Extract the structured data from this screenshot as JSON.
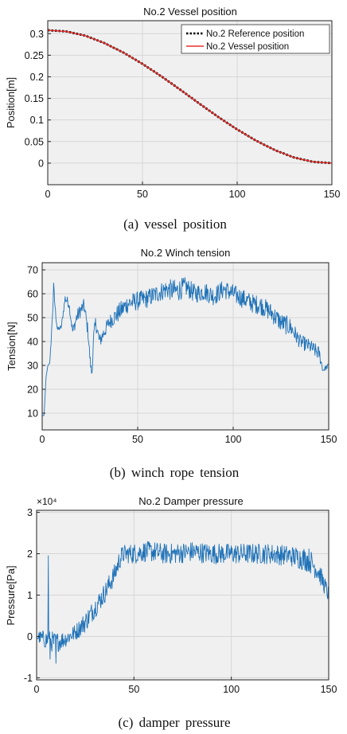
{
  "chart_data": [
    {
      "type": "line",
      "title": "No.2 Vessel position",
      "xlabel": "",
      "ylabel": "Position[m]",
      "xlim": [
        0,
        150
      ],
      "ylim": [
        -0.05,
        0.33
      ],
      "xticks": [
        0,
        50,
        100,
        150
      ],
      "yticks": [
        0,
        0.05,
        0.1,
        0.15,
        0.2,
        0.25,
        0.3
      ],
      "ytick_labels": [
        "0",
        "0.05",
        "0.1",
        "0.15",
        "0.2",
        "0.25",
        "0.3"
      ],
      "grid": true,
      "legend_position": "top-right",
      "caption": "(a)  vessel  position",
      "series": [
        {
          "name": "No.2 Reference position",
          "style": "dotted",
          "color": "#000000",
          "x": [
            0,
            10,
            20,
            30,
            40,
            50,
            60,
            70,
            80,
            90,
            100,
            110,
            120,
            130,
            140,
            150
          ],
          "values": [
            0.308,
            0.305,
            0.295,
            0.278,
            0.256,
            0.23,
            0.201,
            0.17,
            0.138,
            0.107,
            0.078,
            0.052,
            0.03,
            0.013,
            0.003,
            0.0
          ]
        },
        {
          "name": "No.2 Vessel position",
          "style": "solid",
          "color": "#e8312c",
          "x": [
            0,
            10,
            20,
            30,
            40,
            50,
            60,
            70,
            80,
            90,
            100,
            110,
            120,
            130,
            140,
            150
          ],
          "values": [
            0.308,
            0.305,
            0.295,
            0.278,
            0.256,
            0.23,
            0.201,
            0.17,
            0.138,
            0.107,
            0.078,
            0.052,
            0.03,
            0.013,
            0.003,
            0.0
          ]
        }
      ]
    },
    {
      "type": "line",
      "title": "No.2 Winch tension",
      "xlabel": "",
      "ylabel": "Tension[N]",
      "xlim": [
        0,
        150
      ],
      "ylim": [
        3,
        73
      ],
      "xticks": [
        0,
        50,
        100,
        150
      ],
      "yticks": [
        10,
        20,
        30,
        40,
        50,
        60,
        70
      ],
      "ytick_labels": [
        "10",
        "20",
        "30",
        "40",
        "50",
        "60",
        "70"
      ],
      "grid": true,
      "caption": "(b)  winch  rope  tension",
      "series": [
        {
          "color": "#1f72b8",
          "x": [
            0,
            1,
            2,
            3,
            4,
            5,
            6,
            7,
            8,
            10,
            12,
            14,
            16,
            18,
            20,
            22,
            24,
            25,
            26,
            27,
            28,
            30,
            35,
            40,
            45,
            50,
            55,
            60,
            65,
            70,
            75,
            80,
            85,
            90,
            95,
            100,
            105,
            110,
            115,
            120,
            125,
            130,
            135,
            140,
            145,
            147,
            150
          ],
          "values": [
            9,
            9,
            25,
            30,
            31,
            45,
            62,
            52,
            45,
            46,
            58,
            56,
            44,
            50,
            53,
            55,
            44,
            33,
            26,
            42,
            48,
            40,
            48,
            52,
            56,
            57,
            58,
            60,
            62,
            61,
            63,
            60,
            61,
            59,
            62,
            60,
            58,
            56,
            55,
            52,
            48,
            46,
            40,
            38,
            35,
            28,
            30
          ],
          "noise_amplitude": [
            0,
            0,
            0,
            0,
            0,
            2,
            3,
            2,
            1,
            1,
            2,
            2,
            2,
            3,
            3,
            3,
            3,
            2,
            2,
            3,
            3,
            3,
            3,
            4,
            4,
            4,
            4,
            4,
            4,
            5,
            4,
            4,
            4,
            4,
            4,
            4,
            4,
            4,
            4,
            4,
            4,
            4,
            3,
            3,
            3,
            1,
            1
          ]
        }
      ]
    },
    {
      "type": "line",
      "title": "No.2 Damper pressure",
      "xlabel": "",
      "ylabel": "Pressure[Pa]",
      "exponent_label": "×10⁴",
      "xlim": [
        0,
        150
      ],
      "ylim": [
        -1.05,
        3.05
      ],
      "xticks": [
        0,
        50,
        100,
        150
      ],
      "yticks": [
        -1,
        0,
        1,
        2,
        3
      ],
      "ytick_labels": [
        "-1",
        "0",
        "1",
        "2",
        "3"
      ],
      "grid": true,
      "caption": "(c)  damper  pressure",
      "series": [
        {
          "color": "#1f72b8",
          "x": [
            0,
            3,
            6,
            10,
            15,
            20,
            25,
            30,
            35,
            40,
            43,
            45,
            50,
            55,
            60,
            65,
            70,
            80,
            90,
            100,
            110,
            120,
            130,
            140,
            145,
            150
          ],
          "values": [
            0.0,
            -0.05,
            -0.1,
            -0.15,
            -0.05,
            0.1,
            0.35,
            0.7,
            1.05,
            1.5,
            1.9,
            2.0,
            2.0,
            2.05,
            2.05,
            2.0,
            2.0,
            2.05,
            2.0,
            2.0,
            2.0,
            2.0,
            1.95,
            1.85,
            1.55,
            1.0
          ],
          "noise_amplitude": [
            0.12,
            0.2,
            0.25,
            0.25,
            0.2,
            0.2,
            0.25,
            0.25,
            0.25,
            0.25,
            0.25,
            0.22,
            0.25,
            0.25,
            0.25,
            0.25,
            0.25,
            0.25,
            0.25,
            0.25,
            0.25,
            0.25,
            0.25,
            0.3,
            0.25,
            0.2
          ],
          "spikes": [
            {
              "x": 6,
              "y": 1.95
            },
            {
              "x": 7,
              "y": -0.55
            },
            {
              "x": 10,
              "y": -0.65
            }
          ]
        }
      ]
    }
  ]
}
